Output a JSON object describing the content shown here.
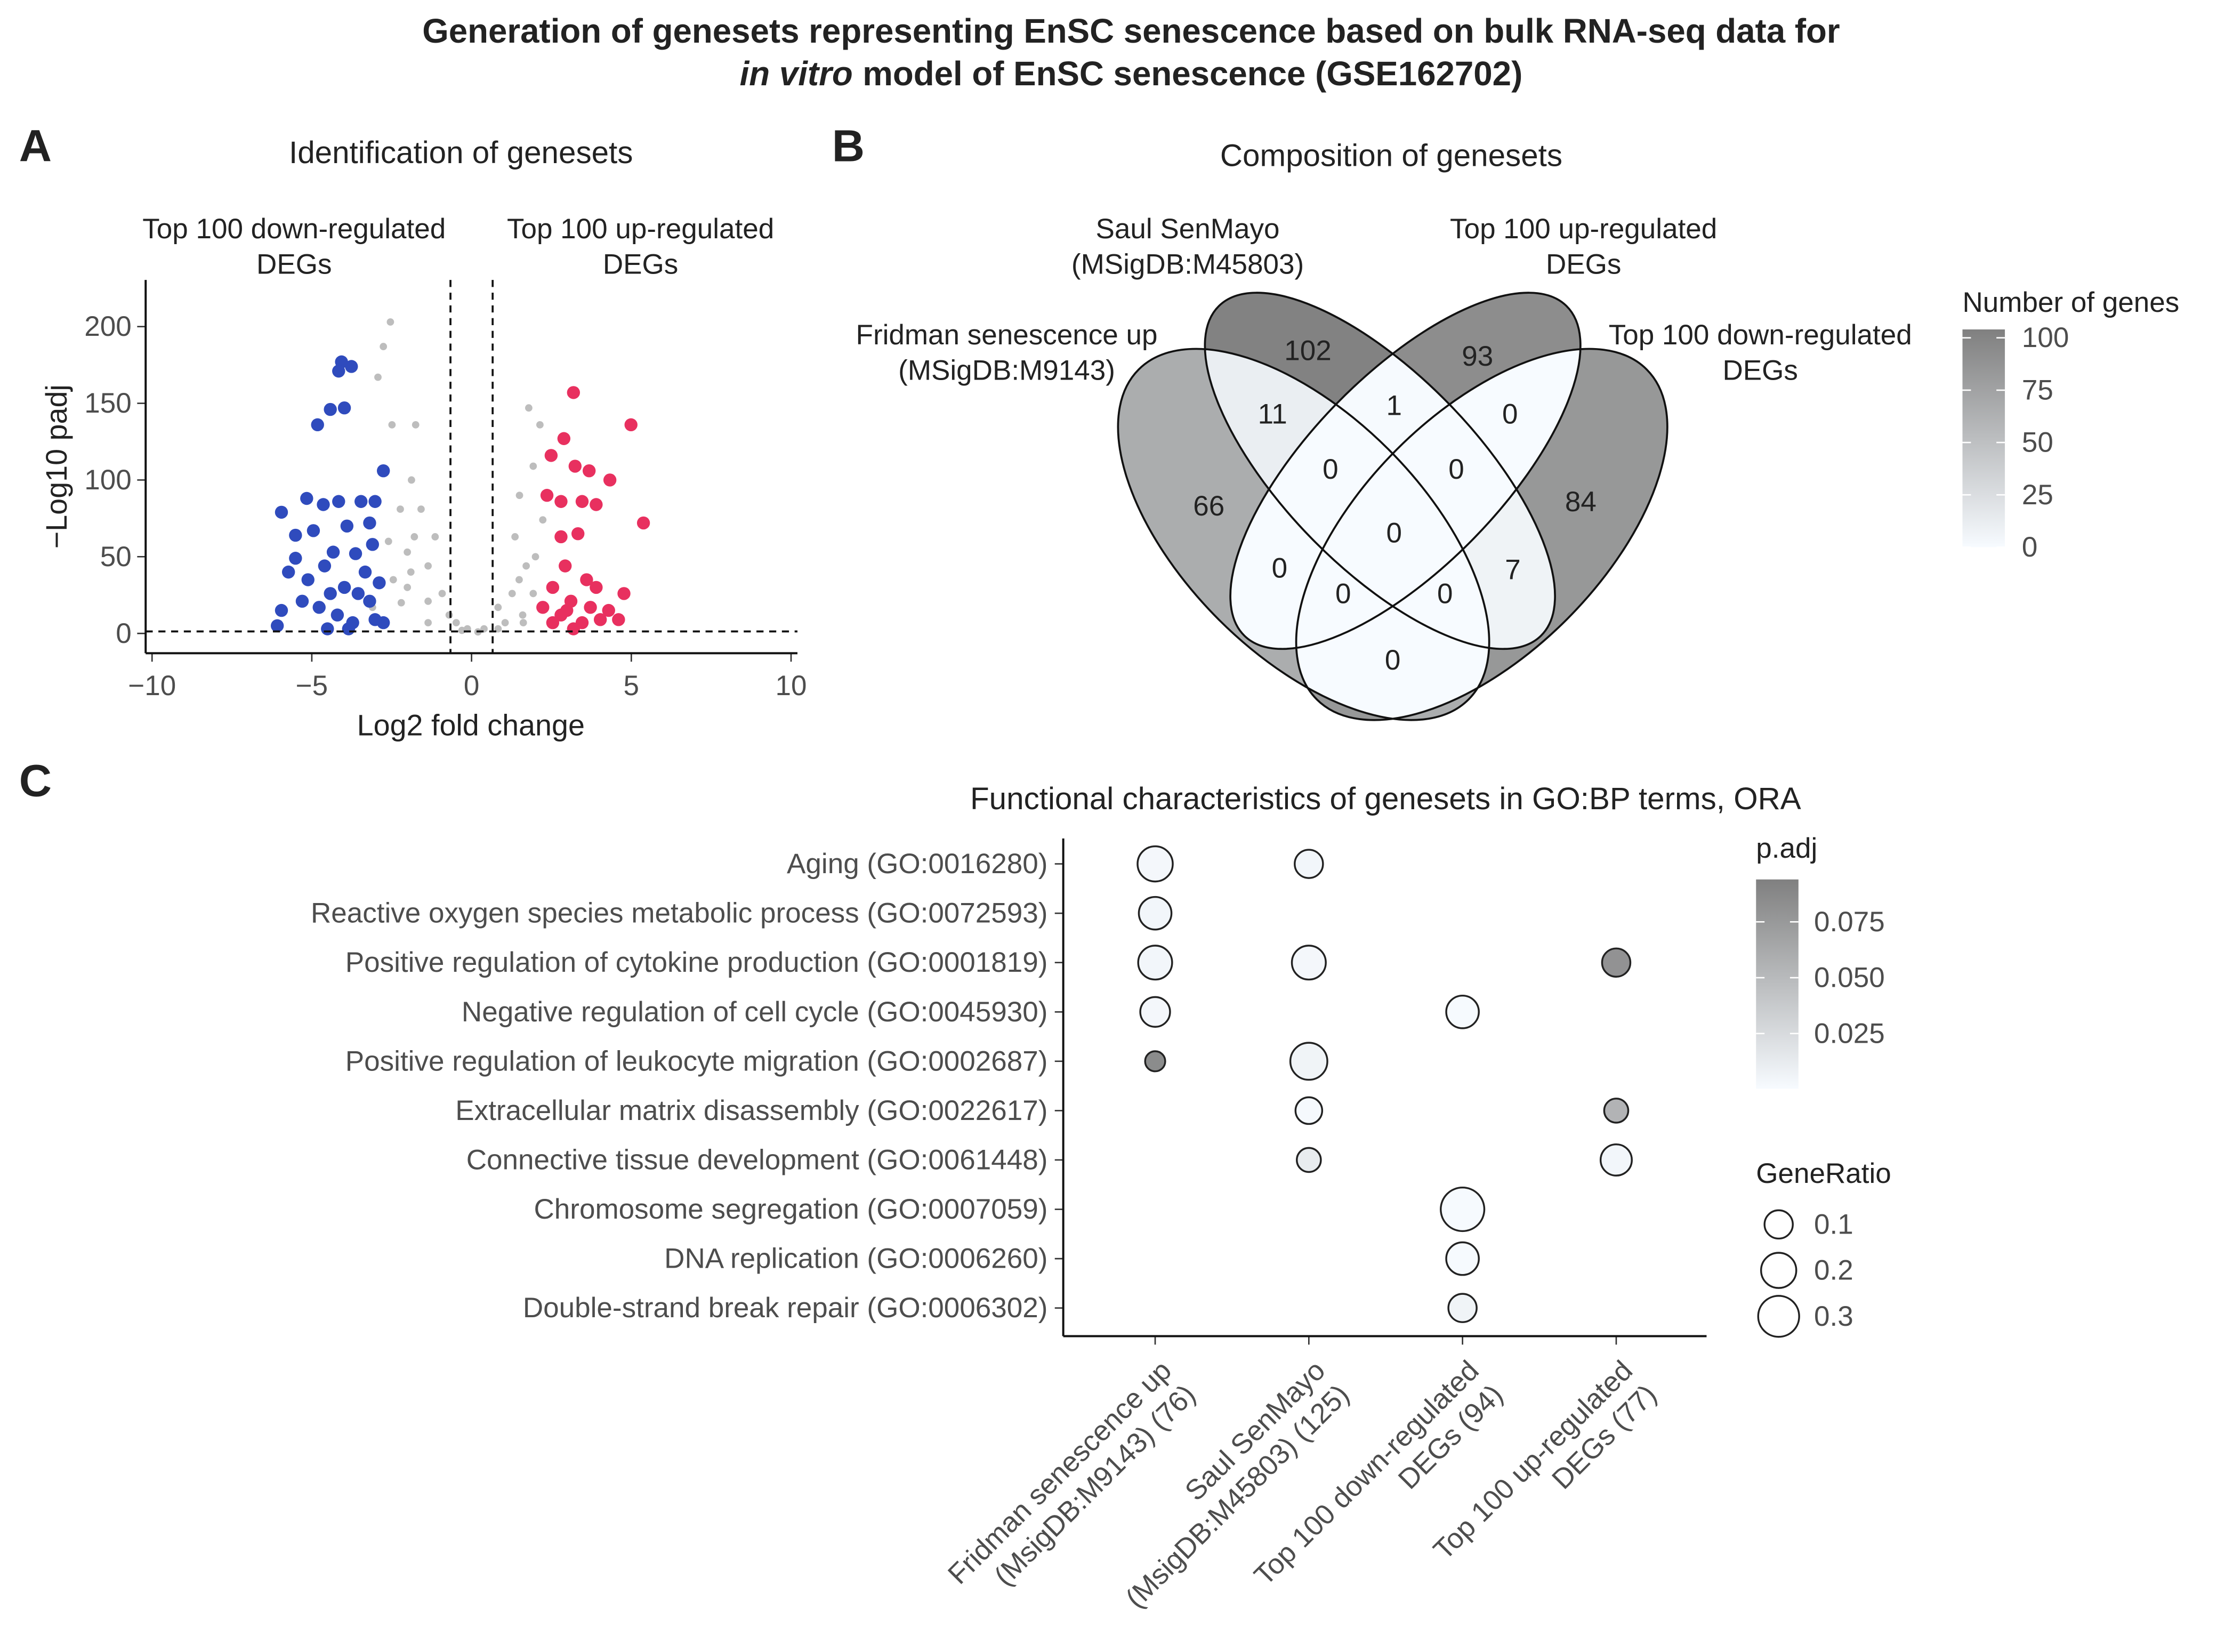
{
  "title": {
    "line1": "Generation of genesets representing EnSC senescence based on bulk RNA-seq data for",
    "line2_italic": "in vitro",
    "line2": "model of EnSC senescence (GSE162702)"
  },
  "panels": [
    "A",
    "B",
    "C"
  ],
  "chart_data": [
    {
      "type": "scatter",
      "title": "Identification of genesets",
      "xlabel": "Log2 fold change",
      "ylabel": "−Log10 padj",
      "annotations": [
        [
          "Top 100 down-regulated",
          "DEGs"
        ],
        [
          "Top 100 up-regulated",
          "DEGs"
        ]
      ],
      "xlim": [
        -10.2,
        10.2
      ],
      "ylim": [
        -12.9,
        230.4
      ],
      "xticks": [
        {
          "value": -10,
          "label": "−10"
        },
        {
          "value": -5,
          "label": "−5"
        },
        0,
        5,
        10
      ],
      "yticks": [
        0,
        50,
        100,
        150,
        200
      ],
      "thresholds": {
        "x": [
          -0.66,
          0.66
        ],
        "y": 1.3
      },
      "series": [
        {
          "color": "#bdbdbd",
          "x": [
            -2.54,
            -2.76,
            -2.93,
            -1.75,
            -1.88,
            -2.23,
            -1.79,
            -1.36,
            -0.92,
            -0.48,
            -0.13,
            0.39,
            0.83,
            1.27,
            1.71,
            1.79,
            1.93,
            2.14,
            1.36,
            2.23,
            -2.49,
            -1.58,
            -1.14,
            -2.01,
            -2.45,
            -3.1,
            -1.36,
            -0.7,
            1.05,
            1.49,
            1.93,
            0.83,
            -1.36,
            -2.01,
            1.62,
            -2.2,
            -1.9,
            1.6,
            2.0,
            -0.3,
            0.2,
            -2.6,
            1.5
          ],
          "values": [
            203,
            187,
            167,
            136,
            100,
            81,
            63,
            44,
            26,
            7,
            3,
            3,
            17,
            26,
            44,
            147,
            109,
            136,
            63,
            74,
            136,
            81,
            63,
            53,
            35,
            17,
            21,
            12,
            7,
            35,
            26,
            3,
            7,
            30,
            7,
            20,
            40,
            12,
            50,
            2,
            1,
            60,
            90
          ]
        },
        {
          "color": "#2f4bbd",
          "x": [
            -4.07,
            -3.76,
            -4.16,
            -4.82,
            -4.42,
            -3.98,
            -2.76,
            -5.16,
            -5.95,
            -4.64,
            -4.16,
            -3.46,
            -3.02,
            -5.51,
            -4.95,
            -3.9,
            -3.19,
            -4.33,
            -3.63,
            -3.1,
            -5.73,
            -5.12,
            -4.6,
            -3.98,
            -3.33,
            -5.95,
            -6.08,
            -5.3,
            -4.77,
            -4.2,
            -3.72,
            -3.19,
            -2.76,
            -4.42,
            -3.55,
            -3.02,
            -3.85,
            -4.51,
            -2.89,
            -5.51
          ],
          "values": [
            177,
            174,
            171,
            136,
            146,
            147,
            106,
            88,
            79,
            84,
            86,
            86,
            86,
            64,
            67,
            70,
            72,
            53,
            52,
            58,
            40,
            35,
            44,
            30,
            40,
            15,
            5,
            21,
            17,
            12,
            7,
            21,
            7,
            26,
            26,
            9,
            3,
            3,
            33,
            49
          ]
        },
        {
          "color": "#e8305f",
          "x": [
            3.19,
            4.99,
            2.89,
            5.38,
            3.24,
            3.68,
            2.49,
            4.33,
            2.8,
            3.46,
            3.9,
            2.36,
            2.8,
            3.33,
            2.93,
            3.6,
            4.77,
            3.9,
            2.54,
            3.11,
            3.72,
            4.29,
            4.6,
            2.8,
            3.46,
            4.03,
            2.54,
            3.19,
            2.23,
            2.98
          ],
          "values": [
            157,
            136,
            127,
            72,
            109,
            106,
            116,
            100,
            86,
            86,
            84,
            90,
            63,
            65,
            44,
            35,
            26,
            30,
            30,
            21,
            17,
            15,
            9,
            12,
            7,
            9,
            7,
            3,
            17,
            15
          ]
        }
      ]
    },
    {
      "type": "venn",
      "title": "Composition of genesets",
      "sets": [
        [
          "Fridman senescence up",
          "(MSigDB:M9143)"
        ],
        [
          "Saul SenMayo",
          "(MSigDB:M45803)"
        ],
        [
          "Top 100 up-regulated",
          "DEGs"
        ],
        [
          "Top 100 down-regulated",
          "DEGs"
        ]
      ],
      "regions": [
        {
          "sets": [
            0
          ],
          "value": 66
        },
        {
          "sets": [
            1
          ],
          "value": 102
        },
        {
          "sets": [
            2
          ],
          "value": 93
        },
        {
          "sets": [
            3
          ],
          "value": 84
        },
        {
          "sets": [
            0,
            1
          ],
          "value": 11
        },
        {
          "sets": [
            1,
            2
          ],
          "value": 1
        },
        {
          "sets": [
            2,
            3
          ],
          "value": 0
        },
        {
          "sets": [
            0,
            1,
            2
          ],
          "value": 0
        },
        {
          "sets": [
            1,
            2,
            3
          ],
          "value": 0
        },
        {
          "sets": [
            0,
            2
          ],
          "value": 0
        },
        {
          "sets": [
            0,
            1,
            2,
            3
          ],
          "value": 0
        },
        {
          "sets": [
            1,
            3
          ],
          "value": 7
        },
        {
          "sets": [
            0,
            2,
            3
          ],
          "value": 0
        },
        {
          "sets": [
            0,
            1,
            3
          ],
          "value": 0
        },
        {
          "sets": [
            0,
            3
          ],
          "value": 0
        }
      ],
      "legend_title": "Number of genes",
      "fill_limits": [
        0,
        104
      ],
      "fill_colors": [
        "#f7fbff",
        "#808080"
      ],
      "ticks": [
        0,
        25,
        50,
        75,
        100
      ]
    },
    {
      "type": "dot",
      "title": "Functional characteristics of genesets in GO:BP terms, ORA",
      "categories": [
        "Aging (GO:0016280)",
        "Reactive oxygen species metabolic process (GO:0072593)",
        "Positive regulation of cytokine production (GO:0001819)",
        "Negative regulation of cell cycle (GO:0045930)",
        "Positive regulation of leukocyte migration (GO:0002687)",
        "Extracellular matrix disassembly (GO:0022617)",
        "Connective tissue development (GO:0061448)",
        "Chromosome segregation (GO:0007059)",
        "DNA replication (GO:0006260)",
        "Double-strand break repair (GO:0006302)"
      ],
      "groups": [
        [
          "Fridman senescence up",
          "(MsigDB:M9143) (76)"
        ],
        [
          "Saul SenMayo",
          "(MsigDB:M45803) (125)"
        ],
        [
          "Top 100 down-regulated",
          "DEGs (94)"
        ],
        [
          "Top 100 up-regulated",
          "DEGs (77)"
        ]
      ],
      "points": [
        {
          "group": 0,
          "category": 0,
          "ratio": 0.2,
          "padj": 0.003
        },
        {
          "group": 1,
          "category": 0,
          "ratio": 0.1,
          "padj": 0.004
        },
        {
          "group": 0,
          "category": 1,
          "ratio": 0.16,
          "padj": 0.004
        },
        {
          "group": 0,
          "category": 2,
          "ratio": 0.18,
          "padj": 0.004
        },
        {
          "group": 1,
          "category": 2,
          "ratio": 0.18,
          "padj": 0.003
        },
        {
          "group": 3,
          "category": 2,
          "ratio": 0.1,
          "padj": 0.08
        },
        {
          "group": 0,
          "category": 3,
          "ratio": 0.12,
          "padj": 0.003
        },
        {
          "group": 2,
          "category": 3,
          "ratio": 0.16,
          "padj": 0.001
        },
        {
          "group": 0,
          "category": 4,
          "ratio": 0.01,
          "padj": 0.085
        },
        {
          "group": 1,
          "category": 4,
          "ratio": 0.23,
          "padj": 0.006
        },
        {
          "group": 1,
          "category": 5,
          "ratio": 0.08,
          "padj": 0.002
        },
        {
          "group": 3,
          "category": 5,
          "ratio": 0.05,
          "padj": 0.055
        },
        {
          "group": 1,
          "category": 6,
          "ratio": 0.05,
          "padj": 0.012
        },
        {
          "group": 3,
          "category": 6,
          "ratio": 0.14,
          "padj": 0.004
        },
        {
          "group": 2,
          "category": 7,
          "ratio": 0.35,
          "padj": 0.001
        },
        {
          "group": 2,
          "category": 8,
          "ratio": 0.16,
          "padj": 0.001
        },
        {
          "group": 2,
          "category": 9,
          "ratio": 0.1,
          "padj": 0.006
        }
      ],
      "color_legend": {
        "title": "p.adj",
        "ticks": [
          0.025,
          {
            "value": 0.05,
            "label": "0.050"
          },
          0.075
        ],
        "limits": [
          0.0003,
          0.094
        ],
        "colors": [
          "#f7fbff",
          "#808080"
        ]
      },
      "size_legend": {
        "title": "GeneRatio",
        "ticks": [
          0.1,
          0.2,
          0.3
        ]
      }
    }
  ]
}
